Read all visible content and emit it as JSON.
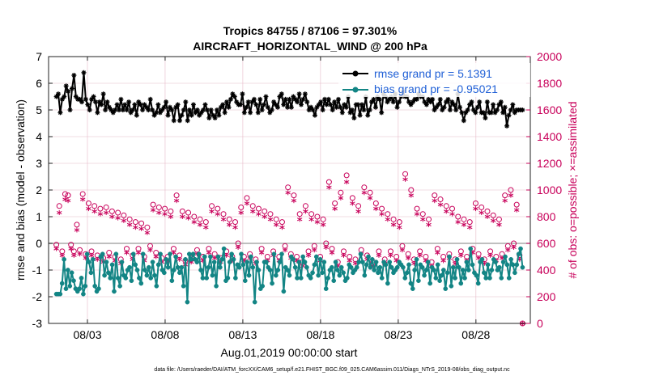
{
  "chart_data": {
    "type": "line",
    "title_line1": "Tropics 84755 / 87106 = 97.301%",
    "title_line2": "AIRCRAFT_HORIZONTAL_WIND @ 200 hPa",
    "ylabel_left": "rmse and bias (model - observation)",
    "ylabel_right": "# of obs: o=possible; ×=assimilated",
    "xlabel": "Aug.01,2019 00:00:00 start",
    "footnote": "data file: /Users/raeder/DAI/ATM_forcXX/CAM6_setup/f.e21.FHIST_BGC.f09_025.CAM6assim.011/Diags_NTrS_2019-08/obs_diag_output.nc",
    "x_range_days": [
      0.5,
      31.5
    ],
    "x_ticks": [
      {
        "day": 3,
        "label": "08/03"
      },
      {
        "day": 8,
        "label": "08/08"
      },
      {
        "day": 13,
        "label": "08/13"
      },
      {
        "day": 18,
        "label": "08/18"
      },
      {
        "day": 23,
        "label": "08/23"
      },
      {
        "day": 28,
        "label": "08/28"
      }
    ],
    "ylim_left": [
      -3,
      7
    ],
    "yticks_left": [
      "-3",
      "-2",
      "-1",
      "0",
      "1",
      "2",
      "3",
      "4",
      "5",
      "6",
      "7"
    ],
    "ylim_right": [
      0,
      2000
    ],
    "yticks_right": [
      "0",
      "200",
      "400",
      "600",
      "800",
      "1000",
      "1200",
      "1400",
      "1600",
      "1800",
      "2000"
    ],
    "legend": {
      "placement": "top-right",
      "entries": [
        "rmse grand pr = 5.1391",
        "bias grand pr = -0.95021"
      ]
    },
    "series": [
      {
        "name": "rmse",
        "color": "#000000",
        "marker": "star",
        "values": [
          5.5,
          5.6,
          4.9,
          5.4,
          5.5,
          5.9,
          5.7,
          5.0,
          5.8,
          6.3,
          5.5,
          5.4,
          5.4,
          5.3,
          6.4,
          5.4,
          5.2,
          5.0,
          5.4,
          5.5,
          5.3,
          4.9,
          5.3,
          5.2,
          5.6,
          5.0,
          5.3,
          5.1,
          5.0,
          4.9,
          5.0,
          5.2,
          5.0,
          5.4,
          5.0,
          5.2,
          5.0,
          5.3,
          4.9,
          5.0,
          5.2,
          4.8,
          5.3,
          5.2,
          5.0,
          5.2,
          5.1,
          5.0,
          5.4,
          5.0,
          4.8,
          4.9,
          5.2,
          4.9,
          5.0,
          5.1,
          5.3,
          4.8,
          5.1,
          5.0,
          4.6,
          5.1,
          5.2,
          4.6,
          4.8,
          5.0,
          5.3,
          4.6,
          5.0,
          4.8,
          5.2,
          4.9,
          5.0,
          4.8,
          4.9,
          5.0,
          5.2,
          5.0,
          4.7,
          5.0,
          4.8,
          4.7,
          5.0,
          4.8,
          5.1,
          5.2,
          4.9,
          5.3,
          5.1,
          5.4,
          5.6,
          5.5,
          5.3,
          5.2,
          5.2,
          5.6,
          4.9,
          5.1,
          5.3,
          4.9,
          5.3,
          5.4,
          5.2,
          4.9,
          5.4,
          5.0,
          5.2,
          5.5,
          5.1,
          4.9,
          5.0,
          5.3,
          5.2,
          5.1,
          5.5,
          5.6,
          5.2,
          5.4,
          5.1,
          5.4,
          5.1,
          5.5,
          5.4,
          5.3,
          5.6,
          5.2,
          5.4,
          5.6,
          5.3,
          5.0,
          5.1,
          5.0,
          4.8,
          5.1,
          5.2,
          5.3,
          5.0,
          5.4,
          5.2,
          5.4,
          5.2,
          5.0,
          5.3,
          5.1,
          5.4,
          5.1,
          4.9,
          5.2,
          5.1,
          5.5,
          4.9,
          5.0,
          4.7,
          5.2,
          5.2,
          4.8,
          5.2,
          5.0,
          5.5,
          4.8,
          5.0,
          5.3,
          5.4,
          5.1,
          5.5,
          5.4,
          4.9,
          5.6,
          5.5,
          5.3,
          5.4,
          5.5,
          5.3,
          5.6,
          5.1,
          5.3,
          5.5,
          5.7,
          5.5,
          5.5,
          5.3,
          5.2,
          5.3,
          5.4,
          5.4,
          5.6,
          5.5,
          5.5,
          5.3,
          5.2,
          5.4,
          5.3,
          5.4,
          5.0,
          5.1,
          5.2,
          5.4,
          5.0,
          5.1,
          5.3,
          5.4,
          5.0,
          5.3,
          5.2,
          5.0,
          5.6,
          5.1,
          4.9,
          4.6,
          4.9,
          5.0,
          5.2,
          5.3,
          5.0,
          4.9,
          5.1,
          5.3,
          4.9,
          4.9,
          4.7,
          5.3,
          4.9,
          4.9,
          5.2,
          4.9,
          5.0,
          5.2,
          5.3,
          4.9,
          5.1,
          4.4,
          4.8,
          5.0,
          5.2,
          4.9,
          5.0,
          5.0,
          5.0,
          5.0
        ]
      },
      {
        "name": "bias",
        "color": "#138585",
        "marker": "circle",
        "values": [
          -1.9,
          -1.9,
          -1.9,
          -1.5,
          -0.6,
          -1.7,
          -1.0,
          -1.6,
          -1.1,
          -1.4,
          -1.7,
          -1.8,
          -1.7,
          -1.3,
          -1.9,
          -1.6,
          -0.4,
          -0.7,
          -1.1,
          -0.6,
          -1.6,
          -1.8,
          -1.7,
          -0.5,
          -0.4,
          -1.2,
          -0.7,
          -1.1,
          -1.3,
          -0.8,
          -1.8,
          -0.4,
          -1.3,
          -1.6,
          -0.7,
          -1.2,
          -1.3,
          -1.0,
          -0.9,
          -1.4,
          -0.4,
          -0.8,
          -1.0,
          -1.3,
          -1.5,
          -0.4,
          -1.0,
          -1.2,
          -0.9,
          -1.3,
          -0.7,
          -1.2,
          -1.6,
          -0.8,
          -0.4,
          -1.0,
          -1.1,
          -0.6,
          -0.9,
          -0.4,
          -1.4,
          -1.0,
          -0.5,
          -0.9,
          -1.1,
          -0.9,
          -1.6,
          -0.6,
          -2.2,
          -0.4,
          -0.6,
          -0.4,
          -0.6,
          -0.7,
          -0.4,
          -1.0,
          -1.3,
          -0.5,
          -1.3,
          -0.9,
          -0.5,
          -1.2,
          -0.7,
          -1.6,
          -0.5,
          -0.9,
          -0.6,
          -0.2,
          -1.4,
          -1.3,
          -0.7,
          -0.4,
          -0.6,
          -1.3,
          -0.8,
          -0.9,
          -0.4,
          -0.8,
          -1.4,
          -0.7,
          -1.2,
          -0.5,
          -0.9,
          -2.2,
          -0.7,
          -1.0,
          -1.7,
          -1.6,
          -0.7,
          -0.7,
          -0.9,
          -1.0,
          -1.5,
          -0.4,
          -1.2,
          -1.0,
          -0.7,
          -0.4,
          -1.8,
          -0.9,
          -1.0,
          -1.2,
          -0.5,
          -0.6,
          -0.9,
          -1.3,
          -0.7,
          -1.3,
          -0.5,
          -0.7,
          -0.9,
          -1.2,
          -1.3,
          -1.1,
          -0.8,
          -0.5,
          -1.2,
          -0.6,
          -1.1,
          -0.7,
          -1.7,
          -1.3,
          -1.0,
          -0.9,
          -1.4,
          -0.7,
          -1.0,
          -1.2,
          -0.9,
          -1.1,
          -1.4,
          -1.3,
          -0.8,
          -0.9,
          -1.1,
          -1.0,
          -0.9,
          -0.7,
          -0.4,
          -0.7,
          -1.2,
          -0.8,
          -0.5,
          -0.9,
          -0.6,
          -1.0,
          -0.7,
          -1.1,
          -0.9,
          -1.3,
          -0.7,
          -0.8,
          -1.5,
          -0.7,
          -0.9,
          -1.1,
          -1.0,
          -0.9,
          -0.7,
          -0.8,
          -0.9,
          -1.3,
          -1.1,
          -0.8,
          -1.5,
          -1.7,
          -1.0,
          -0.6,
          -1.4,
          -0.8,
          -0.9,
          -1.2,
          -1.0,
          -0.7,
          -1.5,
          -0.9,
          -1.0,
          -1.3,
          -0.8,
          -1.4,
          -1.2,
          -1.0,
          -1.7,
          -1.1,
          -0.5,
          -1.6,
          -0.9,
          -1.3,
          -0.6,
          -0.9,
          -1.5,
          -1.0,
          -1.3,
          -0.7,
          -1.0,
          -0.2,
          -0.8,
          -1.1,
          -1.2,
          -1.5,
          -0.7,
          -0.6,
          -1.1,
          -1.3,
          -0.8,
          -1.3,
          -1.0,
          -0.6,
          -0.7,
          -1.0,
          -0.9,
          -1.3,
          -0.7,
          -0.5,
          -0.8,
          -1.3,
          -0.6,
          -0.8,
          -1.1,
          -0.8,
          -0.4,
          -0.2,
          -0.9
        ]
      },
      {
        "name": "possible",
        "color": "#c8005a",
        "marker": "circle-open",
        "values": [
          590,
          880,
          540,
          970,
          960,
          590,
          540,
          740,
          550,
          970,
          520,
          900,
          540,
          880,
          510,
          860,
          490,
          870,
          530,
          840,
          500,
          830,
          480,
          810,
          560,
          780,
          510,
          760,
          560,
          750,
          500,
          720,
          580,
          890,
          530,
          870,
          490,
          860,
          500,
          840,
          560,
          960,
          510,
          840,
          470,
          830,
          490,
          800,
          550,
          780,
          500,
          760,
          560,
          880,
          520,
          860,
          490,
          820,
          540,
          780,
          500,
          760,
          600,
          870,
          500,
          940,
          520,
          880,
          480,
          860,
          560,
          840,
          500,
          820,
          540,
          780,
          500,
          760,
          580,
          1020,
          520,
          960,
          500,
          820,
          460,
          880,
          540,
          820,
          580,
          800,
          500,
          780,
          600,
          1060,
          560,
          900,
          460,
          980,
          540,
          1110,
          500,
          940,
          480,
          880,
          550,
          1020,
          510,
          980,
          460,
          900,
          540,
          860,
          480,
          820,
          540,
          780,
          500,
          760,
          580,
          1120,
          520,
          1000,
          480,
          860,
          540,
          820,
          500,
          780,
          460,
          960,
          560,
          930,
          500,
          880,
          520,
          860,
          480,
          800,
          540,
          780,
          500,
          760,
          560,
          900,
          520,
          870,
          480,
          840,
          540,
          810,
          500,
          780,
          520,
          960,
          580,
          1000,
          600,
          890,
          510,
          0
        ]
      },
      {
        "name": "assimilated",
        "color": "#c8005a",
        "marker": "star",
        "values": [
          560,
          830,
          510,
          930,
          920,
          560,
          510,
          700,
          520,
          930,
          490,
          860,
          510,
          840,
          480,
          820,
          460,
          830,
          500,
          800,
          470,
          790,
          450,
          770,
          530,
          740,
          480,
          720,
          530,
          710,
          470,
          680,
          550,
          850,
          500,
          830,
          460,
          820,
          470,
          800,
          530,
          920,
          480,
          800,
          440,
          790,
          460,
          760,
          520,
          740,
          470,
          720,
          530,
          840,
          490,
          820,
          460,
          780,
          510,
          740,
          470,
          720,
          570,
          830,
          470,
          900,
          490,
          840,
          450,
          820,
          530,
          800,
          470,
          780,
          510,
          740,
          470,
          720,
          550,
          980,
          490,
          920,
          470,
          780,
          430,
          840,
          510,
          780,
          550,
          760,
          470,
          740,
          570,
          1020,
          530,
          860,
          430,
          940,
          510,
          1060,
          470,
          900,
          450,
          840,
          520,
          980,
          480,
          940,
          430,
          860,
          510,
          820,
          450,
          780,
          510,
          740,
          470,
          720,
          550,
          1080,
          490,
          960,
          450,
          820,
          510,
          780,
          470,
          740,
          430,
          920,
          530,
          890,
          470,
          840,
          490,
          820,
          450,
          760,
          510,
          740,
          470,
          720,
          530,
          860,
          490,
          830,
          450,
          800,
          510,
          770,
          470,
          740,
          490,
          920,
          550,
          960,
          570,
          850,
          480,
          0
        ]
      }
    ]
  }
}
